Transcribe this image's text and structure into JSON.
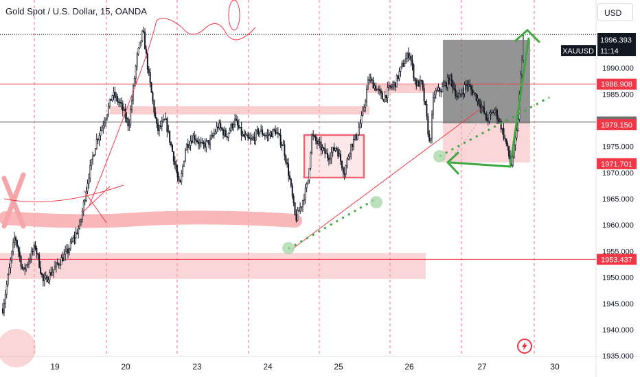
{
  "header": {
    "title": "Gold Spot / U.S. Dollar, 15, OANDA",
    "currency_label": "USD"
  },
  "price_tag": {
    "symbol": "XAUUSD",
    "price": "1996.393",
    "countdown": "11:14"
  },
  "icons": {
    "alert": "lightning-icon"
  },
  "colors": {
    "up": "#26a69a",
    "down": "#ef5350",
    "candle": "#131722",
    "red_line": "#f23645",
    "zone": "#f7a5a9",
    "green_draw": "#3da83f",
    "box_fill": "#6b6b6b"
  },
  "chart_data": {
    "type": "candlestick",
    "title": "",
    "xlabel": "",
    "ylabel": "",
    "x_ticks": [
      "19",
      "20",
      "23",
      "24",
      "25",
      "26",
      "27",
      "30"
    ],
    "y_ticks": [
      "1935.000",
      "1940.000",
      "1945.000",
      "1950.000",
      "1955.000",
      "1960.000",
      "1965.000",
      "1970.000",
      "1975.000",
      "1980.000",
      "1985.000",
      "1990.000"
    ],
    "ylim": [
      1932.4,
      2001.8
    ],
    "horizontal_levels": [
      {
        "value": 1996.393,
        "label": "1996.393",
        "style": "dotted",
        "tag_color": "#131722"
      },
      {
        "value": 1986.908,
        "label": "1986.908",
        "style": "solid",
        "tag_color": "#f23645"
      },
      {
        "value": 1979.678,
        "label": "1979.678",
        "style": "solid",
        "tag_color": "#707070"
      },
      {
        "value": 1979.15,
        "label": "1979.150",
        "style": "none",
        "tag_color": "#f23645"
      },
      {
        "value": 1971.701,
        "label": "1971.701",
        "style": "none",
        "tag_color": "#f23645"
      },
      {
        "value": 1953.437,
        "label": "1953.437",
        "style": "solid",
        "tag_color": "#f23645"
      }
    ],
    "price_path": [
      [
        19.0,
        1944
      ],
      [
        19.3,
        1958
      ],
      [
        19.5,
        1951
      ],
      [
        19.8,
        1956
      ],
      [
        20.0,
        1949
      ],
      [
        20.3,
        1952
      ],
      [
        20.6,
        1955
      ],
      [
        20.9,
        1960
      ],
      [
        21.1,
        1969
      ],
      [
        21.3,
        1976
      ],
      [
        21.5,
        1980
      ],
      [
        21.7,
        1985
      ],
      [
        21.9,
        1983
      ],
      [
        22.1,
        1979
      ],
      [
        22.3,
        1992
      ],
      [
        22.45,
        1997
      ],
      [
        22.6,
        1988
      ],
      [
        22.8,
        1978
      ],
      [
        23.0,
        1980
      ],
      [
        23.2,
        1973
      ],
      [
        23.35,
        1967
      ],
      [
        23.5,
        1975
      ],
      [
        23.7,
        1977
      ],
      [
        23.9,
        1975
      ],
      [
        24.1,
        1976
      ],
      [
        24.3,
        1979
      ],
      [
        24.5,
        1977
      ],
      [
        24.7,
        1980
      ],
      [
        24.9,
        1977
      ],
      [
        25.1,
        1976
      ],
      [
        25.3,
        1978
      ],
      [
        25.5,
        1977
      ],
      [
        25.7,
        1978
      ],
      [
        25.9,
        1975
      ],
      [
        26.05,
        1969
      ],
      [
        26.2,
        1961
      ],
      [
        26.35,
        1964
      ],
      [
        26.5,
        1968
      ],
      [
        26.6,
        1977
      ],
      [
        26.8,
        1975
      ],
      [
        27.0,
        1973
      ],
      [
        27.2,
        1975
      ],
      [
        27.4,
        1970
      ],
      [
        27.55,
        1975
      ],
      [
        27.7,
        1977
      ],
      [
        27.85,
        1981
      ],
      [
        28.0,
        1988
      ],
      [
        28.2,
        1986
      ],
      [
        28.35,
        1984
      ],
      [
        28.5,
        1986
      ],
      [
        28.65,
        1987
      ],
      [
        28.8,
        1990
      ],
      [
        29.0,
        1993
      ],
      [
        29.15,
        1987
      ],
      [
        29.3,
        1987
      ],
      [
        29.4,
        1982
      ],
      [
        29.5,
        1975
      ],
      [
        29.6,
        1985
      ],
      [
        29.8,
        1986
      ],
      [
        30.0,
        1988
      ],
      [
        30.2,
        1984
      ],
      [
        30.4,
        1987
      ],
      [
        30.6,
        1985
      ],
      [
        30.75,
        1983
      ],
      [
        30.9,
        1980
      ],
      [
        31.1,
        1982
      ],
      [
        31.25,
        1979
      ],
      [
        31.4,
        1975
      ],
      [
        31.5,
        1971
      ],
      [
        31.65,
        1978
      ],
      [
        31.8,
        1996
      ]
    ]
  }
}
